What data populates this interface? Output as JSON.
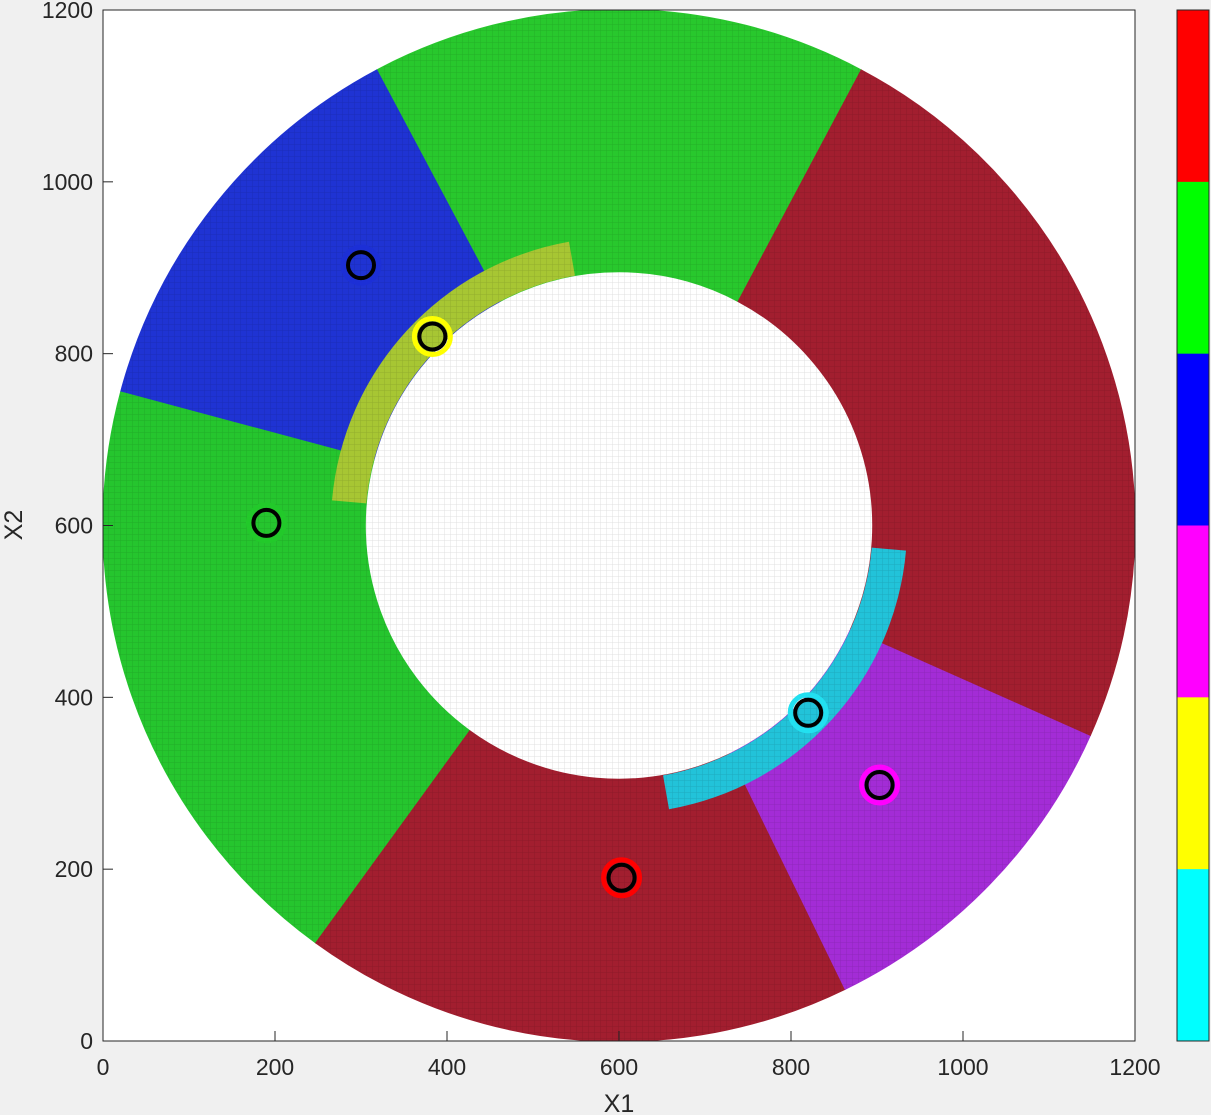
{
  "chart_data": {
    "type": "scatter",
    "title": "",
    "xlabel": "X1",
    "ylabel": "X2",
    "xlim": [
      0,
      1200
    ],
    "ylim": [
      0,
      1200
    ],
    "xticks": [
      0,
      200,
      400,
      600,
      800,
      1000,
      1200
    ],
    "yticks": [
      0,
      200,
      400,
      600,
      800,
      1000,
      1200
    ],
    "grid": false,
    "region": {
      "shape": "annulus",
      "center": [
        600,
        600
      ],
      "inner_radius": 295,
      "outer_radius": 600
    },
    "sectors": [
      {
        "color": "#2E9B2E",
        "angle_from": 62,
        "angle_to": 118
      },
      {
        "color": "#1C2FD6",
        "angle_from": 118,
        "angle_to": 165
      },
      {
        "color": "#22C92A",
        "angle_from": 165,
        "angle_to": 235
      },
      {
        "color": "#A3202E",
        "angle_from": 235,
        "angle_to": 295
      },
      {
        "color": "#A02BD8",
        "angle_from": 295,
        "angle_to": 335
      },
      {
        "color": "#A3202E",
        "angle_from": 335,
        "angle_to": 422
      }
    ],
    "sector_fills": [
      {
        "color": "#28C82D",
        "angle_from": 62,
        "angle_to": 118
      },
      {
        "color": "#1F33D3",
        "angle_from": 118,
        "angle_to": 165
      },
      {
        "color": "#25C52E",
        "angle_from": 165,
        "angle_to": 234
      },
      {
        "color": "#A21E2F",
        "angle_from": 234,
        "angle_to": 296
      },
      {
        "color": "#A32CD6",
        "angle_from": 296,
        "angle_to": 336
      },
      {
        "color": "#A21E2F",
        "angle_from": 336,
        "angle_to": 422
      }
    ],
    "inner_bands": [
      {
        "color": "#A7C633",
        "angle_from": 100,
        "angle_to": 175,
        "r_from": 295,
        "r_to": 335
      },
      {
        "color": "#22C3D9",
        "angle_from": 280,
        "angle_to": 355,
        "r_from": 295,
        "r_to": 335
      }
    ],
    "points": [
      {
        "x": 300,
        "y": 903,
        "ring_color": "#1C2FD6"
      },
      {
        "x": 383,
        "y": 820,
        "ring_color": "#FFFF00"
      },
      {
        "x": 190,
        "y": 603,
        "ring_color": "#22C92A"
      },
      {
        "x": 820,
        "y": 382,
        "ring_color": "#22E0F0"
      },
      {
        "x": 903,
        "y": 298,
        "ring_color": "#FF00FF"
      },
      {
        "x": 603,
        "y": 190,
        "ring_color": "#FF0000"
      }
    ],
    "colorbar": [
      "#FF0000",
      "#00FF00",
      "#0000FF",
      "#FF00FF",
      "#FFFF00",
      "#00FFFF"
    ]
  }
}
